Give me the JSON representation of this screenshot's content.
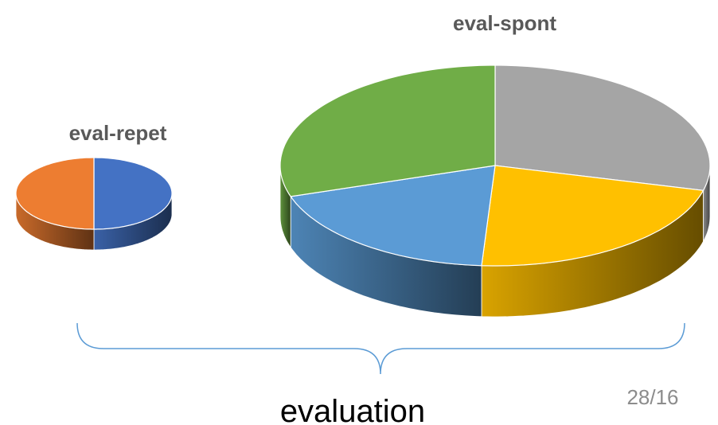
{
  "chart_data": [
    {
      "type": "pie",
      "title": "eval-repet",
      "values": [
        50,
        50
      ],
      "colors": [
        "#4472c4",
        "#ed7d31"
      ]
    },
    {
      "type": "pie",
      "title": "eval-spont",
      "values": [
        29,
        22,
        19,
        30
      ],
      "colors": [
        "#a5a5a5",
        "#ffc000",
        "#5b9bd5",
        "#70ad47"
      ]
    }
  ],
  "caption": "evaluation",
  "page_number": "28/16"
}
